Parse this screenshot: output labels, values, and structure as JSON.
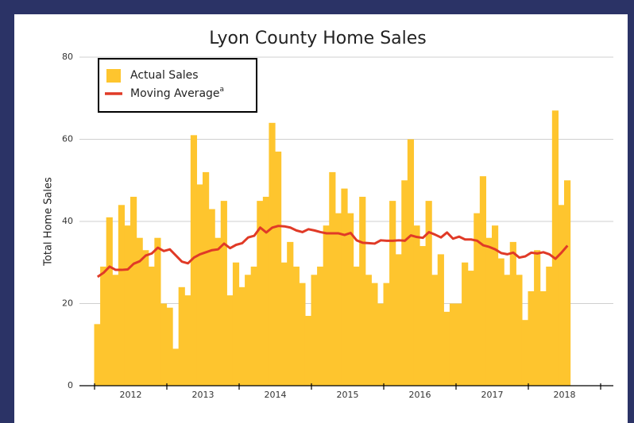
{
  "chart_data": {
    "type": "bar_line",
    "title": "Lyon County Home Sales",
    "y_label": "Total Home Sales",
    "categories": [
      null,
      null,
      null,
      null,
      null,
      null,
      null,
      null,
      null,
      null,
      null,
      null,
      null,
      null,
      null,
      null,
      null,
      null,
      null,
      null,
      null,
      null,
      null,
      null,
      null,
      null,
      null,
      null,
      null,
      null,
      null,
      null,
      null,
      null,
      null,
      null,
      null,
      null,
      null,
      null,
      null,
      null,
      null,
      null,
      null,
      null,
      null,
      null,
      null,
      null,
      null,
      null,
      null,
      null,
      null,
      null,
      null,
      null,
      null,
      null,
      null,
      null,
      null,
      null,
      null,
      null,
      null,
      null,
      null,
      null,
      null,
      null,
      null,
      null,
      null,
      null,
      null,
      null,
      null
    ],
    "year_labels": [
      "2012",
      "2013",
      "2014",
      "2015",
      "2016",
      "2017",
      "2018"
    ],
    "series": [
      {
        "name": "Actual Sales",
        "color": "#fec52e",
        "kind": "bar",
        "values": [
          15,
          29,
          41,
          27,
          44,
          39,
          46,
          36,
          33,
          29,
          36,
          20,
          19,
          9,
          24,
          22,
          61,
          49,
          52,
          43,
          36,
          45,
          22,
          30,
          24,
          27,
          29,
          45,
          46,
          64,
          57,
          30,
          35,
          29,
          25,
          17,
          27,
          29,
          39,
          52,
          42,
          48,
          42,
          29,
          46,
          27,
          25,
          20,
          25,
          45,
          32,
          50,
          60,
          39,
          34,
          45,
          27,
          32,
          18,
          20,
          20,
          30,
          28,
          42,
          51,
          36,
          39,
          31,
          27,
          35,
          27,
          16,
          23,
          33,
          23,
          29,
          67,
          44,
          50
        ]
      },
      {
        "name": "Moving Average",
        "footnote": "a",
        "color": "#e03a27",
        "kind": "line",
        "values": [
          26.5,
          27.5,
          29,
          28.2,
          28.2,
          28.3,
          29.7,
          30.3,
          31.7,
          32.2,
          33.6,
          32.8,
          33.2,
          31.7,
          30.2,
          29.8,
          31.2,
          32,
          32.5,
          33,
          33.2,
          34.6,
          33.5,
          34.3,
          34.7,
          36.1,
          36.5,
          38.5,
          37.3,
          38.5,
          38.9,
          38.8,
          38.5,
          37.8,
          37.4,
          38.1,
          37.8,
          37.4,
          37.1,
          37.1,
          37.1,
          36.7,
          37.2,
          35.4,
          34.8,
          34.7,
          34.6,
          35.4,
          35.3,
          35.3,
          35.4,
          35.3,
          36.6,
          36.2,
          36.0,
          37.4,
          36.8,
          36.1,
          37.3,
          35.8,
          36.3,
          35.6,
          35.6,
          35.3,
          34.2,
          33.8,
          33.2,
          32.3,
          32,
          32.4,
          31.2,
          31.5,
          32.4,
          32.2,
          32.5,
          32.0,
          30.9,
          32.4,
          34.1
        ]
      }
    ],
    "ylim": [
      0,
      80
    ],
    "yticks": [
      0,
      20,
      40,
      60,
      80
    ],
    "grid": true,
    "legend": "top-left"
  }
}
